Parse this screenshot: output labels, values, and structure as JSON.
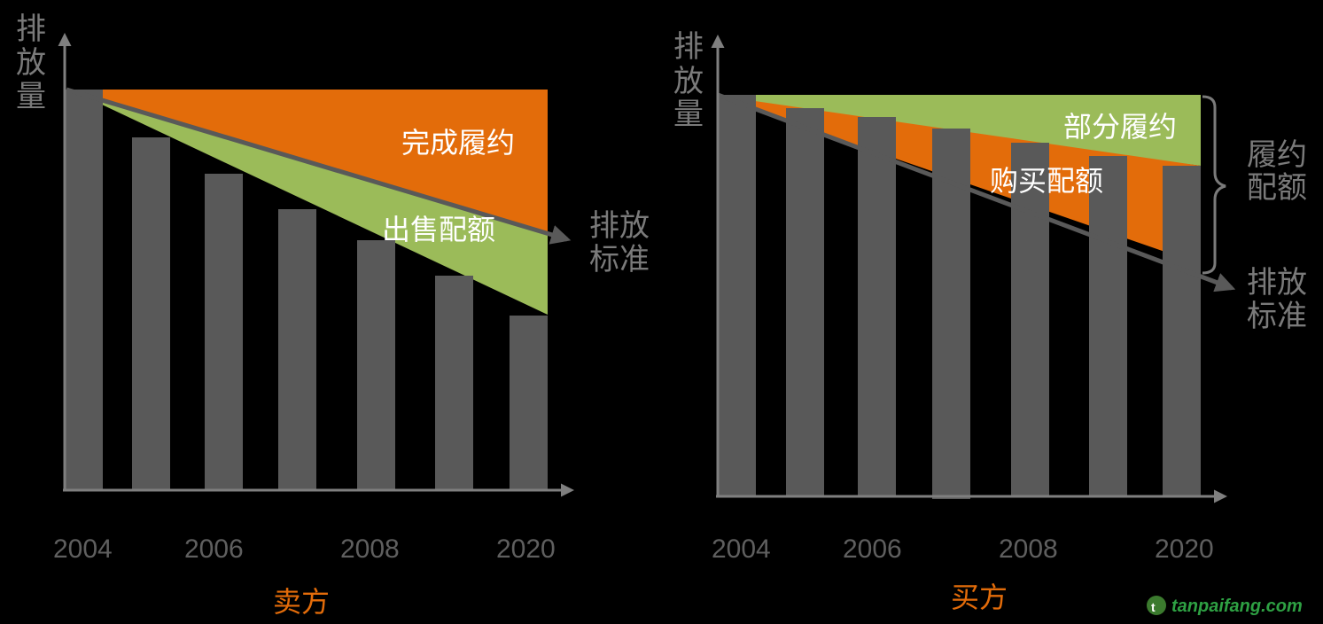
{
  "colors": {
    "bar": "#595959",
    "orange": "#e36c0a",
    "green": "#9bbb59",
    "axis": "#7f7f7f",
    "text_gray": "#7a7a7a",
    "title_orange": "#e36c0a",
    "watermark": "#2ea043"
  },
  "seller": {
    "title": "卖方",
    "y_label": [
      "排",
      "放",
      "量"
    ],
    "standard_label": [
      "排放",
      "标准"
    ],
    "region_complete": "完成履约",
    "region_sell": "出售配额",
    "x_ticks": [
      "2004",
      "2006",
      "2008",
      "2020"
    ]
  },
  "buyer": {
    "title": "买方",
    "y_label": [
      "排",
      "放",
      "量"
    ],
    "standard_label": [
      "排放",
      "标准"
    ],
    "region_partial": "部分履约",
    "region_buy": "购买配额",
    "bracket_label": [
      "履约",
      "配额"
    ],
    "x_ticks": [
      "2004",
      "2006",
      "2008",
      "2020"
    ]
  },
  "watermark": "tanpaifang.com",
  "chart_data": [
    {
      "type": "bar",
      "title": "卖方",
      "ylabel": "排放量",
      "x_ticks": [
        "2004",
        "2006",
        "2008",
        "2020"
      ],
      "bars": [
        100,
        88,
        79,
        70,
        62,
        54,
        44
      ],
      "emission_standard": {
        "start": 100,
        "end": 65
      },
      "allowance_cap": 100,
      "regions": [
        "完成履约",
        "出售配额"
      ]
    },
    {
      "type": "bar",
      "title": "买方",
      "ylabel": "排放量",
      "x_ticks": [
        "2004",
        "2006",
        "2008",
        "2020"
      ],
      "bars": [
        100,
        97,
        95,
        92,
        89,
        86,
        83
      ],
      "emission_standard": {
        "start": 100,
        "end": 59
      },
      "allowance_cap": 100,
      "regions": [
        "部分履约",
        "购买配额"
      ]
    }
  ]
}
